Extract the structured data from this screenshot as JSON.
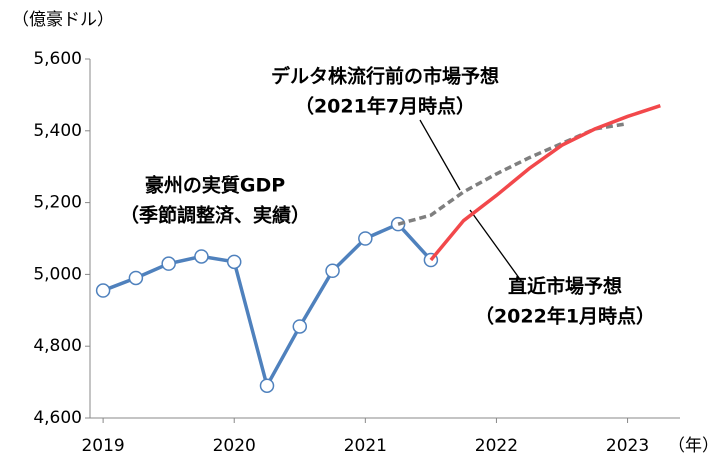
{
  "chart_data": {
    "type": "line",
    "y_label": "（億豪ドル）",
    "x_label": "（年）",
    "xlim": [
      2018.9,
      2023.4
    ],
    "xticks": [
      2019,
      2020,
      2021,
      2022,
      2023
    ],
    "ylim": [
      4600,
      5600
    ],
    "yticks": [
      {
        "value": 4600,
        "label": "4,600"
      },
      {
        "value": 4800,
        "label": "4,800"
      },
      {
        "value": 5000,
        "label": "5,000"
      },
      {
        "value": 5200,
        "label": "5,200"
      },
      {
        "value": 5400,
        "label": "5,400"
      },
      {
        "value": 5600,
        "label": "5,600"
      }
    ],
    "grid": false,
    "series": [
      {
        "color": "#4f81bd",
        "style": "solid",
        "markers": true,
        "x": [
          2019.0,
          2019.25,
          2019.5,
          2019.75,
          2020.0,
          2020.25,
          2020.5,
          2020.75,
          2021.0,
          2021.25,
          2021.5
        ],
        "values": [
          4955,
          4990,
          5030,
          5050,
          5035,
          4690,
          4855,
          5010,
          5100,
          5140,
          5040
        ]
      },
      {
        "color": "#7f7f7f",
        "style": "dashed",
        "markers": false,
        "x": [
          2021.25,
          2021.5,
          2021.75,
          2022.0,
          2022.25,
          2022.5,
          2022.75,
          2023.0
        ],
        "values": [
          5140,
          5165,
          5230,
          5280,
          5325,
          5365,
          5405,
          5420
        ]
      },
      {
        "color": "#f2484b",
        "style": "solid",
        "markers": false,
        "x": [
          2021.5,
          2021.75,
          2022.0,
          2022.25,
          2022.5,
          2022.75,
          2023.0,
          2023.25
        ],
        "values": [
          5040,
          5150,
          5220,
          5295,
          5360,
          5405,
          5440,
          5470
        ]
      }
    ],
    "annotations": [
      {
        "lines": [
          "デルタ株流行前の市場予想",
          "（2021年7月時点）"
        ],
        "color": "#7f7f7f"
      },
      {
        "lines": [
          "豪州の実質GDP",
          "（季節調整済、実績）"
        ],
        "color": "#4f81bd"
      },
      {
        "lines": [
          "直近市場予想",
          "（2022年1月時点）"
        ],
        "color": "#f2484b"
      }
    ]
  }
}
